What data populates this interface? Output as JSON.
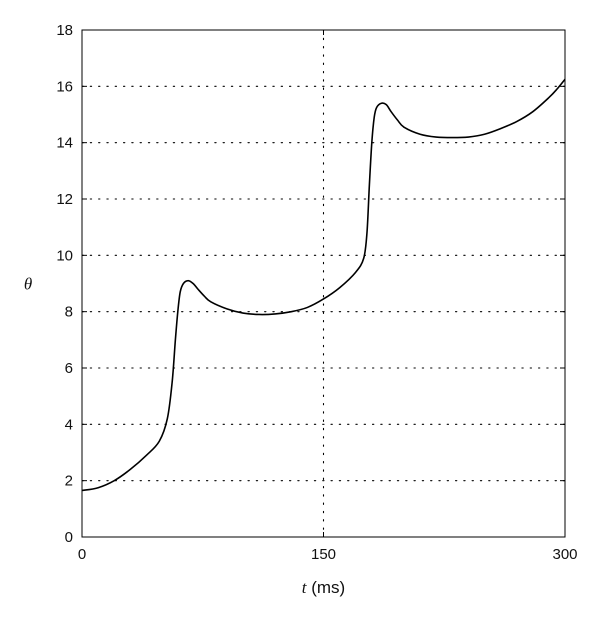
{
  "chart_data": {
    "type": "line",
    "xlabel_var": "t",
    "xlabel_unit": " (ms)",
    "ylabel": "θ",
    "xlim": [
      0,
      300
    ],
    "ylim": [
      0,
      18
    ],
    "xticks": [
      0,
      150,
      300
    ],
    "yticks": [
      0,
      2,
      4,
      6,
      8,
      10,
      12,
      14,
      16,
      18
    ],
    "grid": "dotted horizontal at y ticks, dotted vertical at x=150",
    "series": [
      {
        "color": "#000000",
        "x": [
          0,
          10,
          20,
          30,
          40,
          48,
          53,
          56,
          58,
          59.5,
          61,
          63,
          66,
          69,
          72,
          76,
          80,
          90,
          100,
          110,
          120,
          130,
          140,
          150,
          160,
          170,
          175,
          177,
          178.5,
          180,
          181.5,
          183,
          186,
          189,
          192,
          196,
          200,
          210,
          220,
          230,
          240,
          250,
          260,
          270,
          280,
          290,
          295,
          300
        ],
        "y": [
          1.65,
          1.75,
          2.0,
          2.4,
          2.9,
          3.4,
          4.2,
          5.5,
          7.0,
          8.0,
          8.7,
          9.0,
          9.1,
          9.0,
          8.8,
          8.55,
          8.35,
          8.1,
          7.95,
          7.9,
          7.92,
          8.0,
          8.15,
          8.45,
          8.85,
          9.4,
          9.9,
          10.8,
          12.5,
          14.0,
          14.9,
          15.25,
          15.4,
          15.35,
          15.1,
          14.8,
          14.55,
          14.3,
          14.2,
          14.18,
          14.2,
          14.3,
          14.5,
          14.75,
          15.1,
          15.6,
          15.9,
          16.25
        ]
      }
    ]
  }
}
